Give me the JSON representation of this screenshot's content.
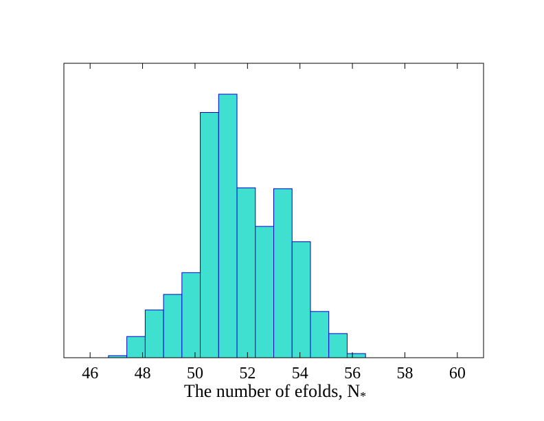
{
  "chart_data": {
    "type": "bar",
    "xlabel": "The number of efolds, N",
    "xlabel_subscript": "*",
    "ylabel": "",
    "xlim": [
      45,
      61
    ],
    "ylim": [
      0,
      100
    ],
    "xticks": [
      46,
      48,
      50,
      52,
      54,
      56,
      58,
      60
    ],
    "y_tick_labels_shown": false,
    "grid": false,
    "bar_color": "#40E0D0",
    "edge_color": "#0000CD",
    "bins": [
      {
        "x0": 46.7,
        "x1": 47.4,
        "value": 0.7
      },
      {
        "x0": 47.4,
        "x1": 48.1,
        "value": 7.2
      },
      {
        "x0": 48.1,
        "x1": 48.8,
        "value": 16.2
      },
      {
        "x0": 48.8,
        "x1": 49.5,
        "value": 21.5
      },
      {
        "x0": 49.5,
        "x1": 50.2,
        "value": 28.9
      },
      {
        "x0": 50.2,
        "x1": 50.9,
        "value": 83.3
      },
      {
        "x0": 50.9,
        "x1": 51.6,
        "value": 89.5
      },
      {
        "x0": 51.6,
        "x1": 52.3,
        "value": 57.7
      },
      {
        "x0": 52.3,
        "x1": 53.0,
        "value": 44.6
      },
      {
        "x0": 53.0,
        "x1": 53.7,
        "value": 57.4
      },
      {
        "x0": 53.7,
        "x1": 54.4,
        "value": 39.4
      },
      {
        "x0": 54.4,
        "x1": 55.1,
        "value": 15.7
      },
      {
        "x0": 55.1,
        "x1": 55.8,
        "value": 8.2
      },
      {
        "x0": 55.8,
        "x1": 56.5,
        "value": 1.4
      }
    ]
  }
}
